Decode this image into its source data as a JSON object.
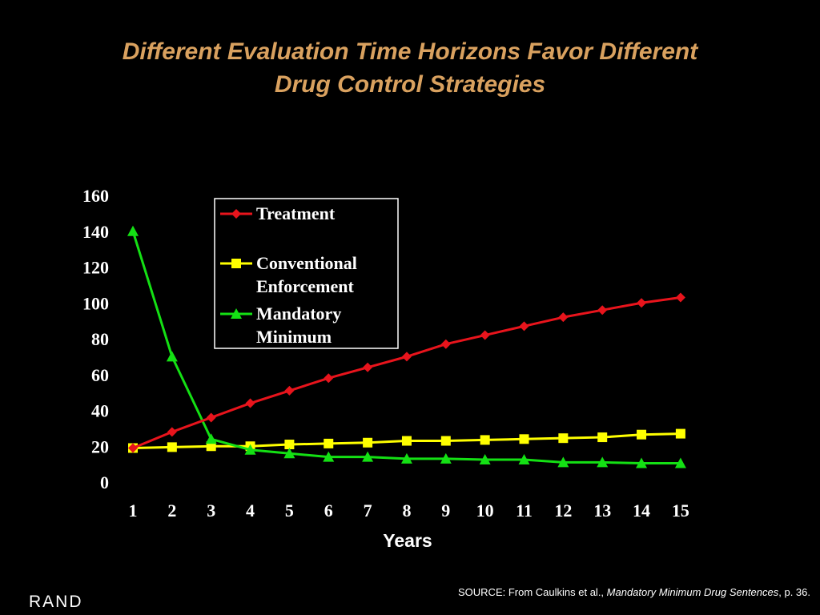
{
  "title": {
    "line1": "Different Evaluation Time Horizons Favor Different",
    "line2": "Drug Control Strategies"
  },
  "chart_data": {
    "type": "line",
    "xlabel": "Years",
    "ylabel": "",
    "ylim": [
      0,
      160
    ],
    "yticks": [
      0,
      20,
      40,
      60,
      80,
      100,
      120,
      140,
      160
    ],
    "x": [
      1,
      2,
      3,
      4,
      5,
      6,
      7,
      8,
      9,
      10,
      11,
      12,
      13,
      14,
      15
    ],
    "grid": false,
    "legend_position": "top-left (inside plot)",
    "series": [
      {
        "name": "Treatment",
        "color": "#e8141c",
        "marker": "diamond",
        "values": [
          19,
          28,
          36,
          44,
          51,
          58,
          64,
          70,
          77,
          82,
          87,
          92,
          96,
          100,
          103
        ]
      },
      {
        "name": "Conventional Enforcement",
        "name_lines": [
          "Conventional",
          "Enforcement"
        ],
        "color": "#ffff00",
        "marker": "square",
        "values": [
          19,
          19.5,
          20,
          20,
          21,
          21.5,
          22,
          23,
          23,
          23.5,
          24,
          24.5,
          25,
          26.5,
          27
        ]
      },
      {
        "name": "Mandatory Minimum",
        "name_lines": [
          "Mandatory",
          "Minimum"
        ],
        "color": "#14e014",
        "marker": "triangle",
        "values": [
          140,
          70,
          24,
          18,
          16,
          14,
          14,
          13,
          13,
          12.5,
          12.5,
          11,
          11,
          10.5,
          10.5
        ]
      }
    ]
  },
  "footer": {
    "logo": "RAND",
    "source_prefix": "SOURCE: From Caulkins et al., ",
    "source_title": "Mandatory Minimum Drug Sentences",
    "source_suffix": ", p. 36."
  }
}
